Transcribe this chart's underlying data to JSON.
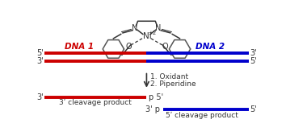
{
  "bg_color": "#ffffff",
  "red_color": "#cc0000",
  "blue_color": "#0000cc",
  "dark_color": "#333333",
  "dna1_label": "DNA 1",
  "dna2_label": "DNA 2",
  "oxidant_line1": "1. Oxidant",
  "oxidant_line2": "2. Piperidine",
  "cleavage3_label": "3ʹ cleavage product",
  "cleavage5_label": "5ʹ cleavage product",
  "line_lw": 2.8,
  "arrow_label_fontsize": 6.5,
  "tick_label_fontsize": 7,
  "dna_label_fontsize": 7.5
}
